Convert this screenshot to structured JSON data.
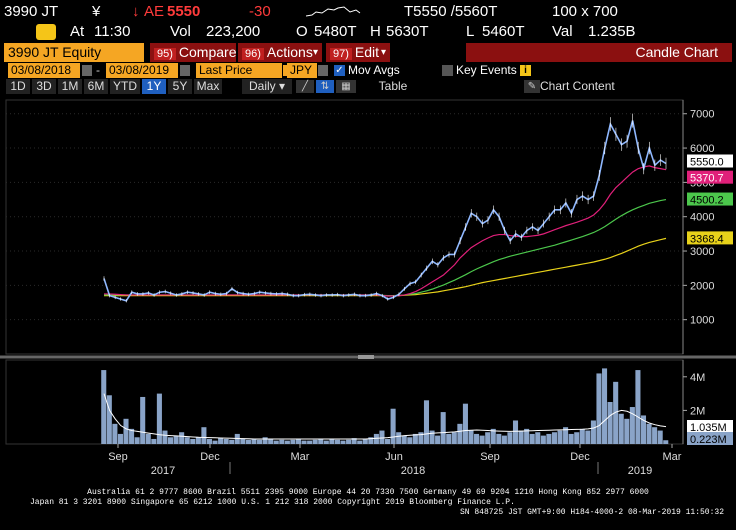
{
  "ticker": {
    "symbol": "3990 JT",
    "currency_symbol": "¥",
    "arrow": "↓",
    "ae_label": "AE",
    "last_price": "5550",
    "change": "-30",
    "time_label": "At",
    "time": "11:30",
    "vol_label": "Vol",
    "volume": "223,200",
    "open_label": "O",
    "open": "5480T",
    "high_label": "H",
    "high": "5630T",
    "low_label": "L",
    "low": "5460T",
    "bid_ask": "T5550 /5560T",
    "size": "100 x 700",
    "val_label": "Val",
    "value": "1.235B"
  },
  "toolbar": {
    "security": "3990 JT Equity",
    "compare": {
      "num": "95)",
      "label": "Compare"
    },
    "actions": {
      "num": "96)",
      "label": "Actions"
    },
    "edit": {
      "num": "97)",
      "label": "Edit"
    },
    "chart_type": "Candle Chart"
  },
  "settings": {
    "start_date": "03/08/2018",
    "end_date": "03/08/2019",
    "price_field": "Last Price",
    "currency": "JPY",
    "mov_avgs_label": "Mov Avgs",
    "key_events_label": "Key Events"
  },
  "ranges": {
    "items": [
      "1D",
      "3D",
      "1M",
      "6M",
      "YTD",
      "1Y",
      "5Y",
      "Max"
    ],
    "selected": "1Y",
    "frequency": "Daily",
    "table_label": "Table",
    "chart_content_label": "Chart Content"
  },
  "colors": {
    "price": "#8fb8ff",
    "ma_fast": "#e0207a",
    "ma_mid": "#4cc74c",
    "ma_slow": "#e8d21a",
    "volume": "#8aa4c8",
    "accent": "#f5a623",
    "button_red": "#8b1010"
  },
  "chart_data": {
    "type": "line",
    "x_tick_labels": [
      "Sep",
      "Dec",
      "Mar",
      "Jun",
      "Sep",
      "Dec",
      "Mar"
    ],
    "year_labels": [
      "2017",
      "2018",
      "2019"
    ],
    "price_axis": {
      "ticks": [
        1000,
        2000,
        3000,
        4000,
        5000,
        6000,
        7000
      ],
      "range": [
        0,
        7400
      ]
    },
    "volume_axis": {
      "ticks": [
        "2M",
        "4M"
      ],
      "range": [
        0,
        5000000
      ]
    },
    "last_labels": {
      "price": "5550.0",
      "ma_fast": "5370.7",
      "ma_mid": "4500.2",
      "ma_slow": "3368.4",
      "vol_ma": "1.035M",
      "vol_last": "0.223M"
    },
    "series": [
      {
        "key": "price",
        "values": [
          2200,
          1700,
          1650,
          1600,
          1550,
          1800,
          1750,
          1750,
          1780,
          1720,
          1800,
          1820,
          1770,
          1720,
          1750,
          1800,
          1780,
          1750,
          1720,
          1800,
          1760,
          1740,
          1760,
          1900,
          1790,
          1760,
          1740,
          1760,
          1800,
          1780,
          1760,
          1750,
          1760,
          1740,
          1700,
          1700,
          1730,
          1740,
          1720,
          1700,
          1720,
          1720,
          1730,
          1700,
          1720,
          1740,
          1700,
          1700,
          1720,
          1760,
          1700,
          1600,
          1650,
          1740,
          1900,
          2050,
          2100,
          2300,
          2500,
          2700,
          2600,
          2800,
          2900,
          2900,
          3300,
          3700,
          4100,
          4000,
          3800,
          3900,
          4200,
          4000,
          3600,
          3300,
          3500,
          3400,
          3600,
          3700,
          3600,
          3800,
          4000,
          4200,
          4200,
          4400,
          4100,
          4500,
          4600,
          4500,
          4600,
          5200,
          6000,
          6700,
          6400,
          6100,
          6200,
          6800,
          6000,
          5400,
          6000,
          5500,
          5650,
          5550
        ]
      },
      {
        "key": "ma_fast",
        "values": [
          1750,
          1750,
          1740,
          1730,
          1720,
          1720,
          1720,
          1720,
          1720,
          1720,
          1720,
          1720,
          1720,
          1720,
          1720,
          1720,
          1720,
          1720,
          1720,
          1720,
          1720,
          1720,
          1720,
          1720,
          1720,
          1720,
          1720,
          1720,
          1720,
          1720,
          1720,
          1720,
          1720,
          1720,
          1720,
          1720,
          1720,
          1720,
          1720,
          1720,
          1720,
          1720,
          1720,
          1720,
          1720,
          1720,
          1720,
          1720,
          1720,
          1720,
          1700,
          1690,
          1690,
          1700,
          1720,
          1760,
          1820,
          1900,
          2000,
          2100,
          2200,
          2300,
          2450,
          2600,
          2800,
          2950,
          3100,
          3200,
          3300,
          3380,
          3450,
          3480,
          3480,
          3450,
          3430,
          3420,
          3420,
          3440,
          3460,
          3500,
          3560,
          3620,
          3680,
          3740,
          3790,
          3840,
          3900,
          3960,
          4050,
          4200,
          4400,
          4650,
          4850,
          5000,
          5150,
          5300,
          5400,
          5450,
          5480,
          5430,
          5400,
          5370
        ]
      },
      {
        "key": "ma_mid",
        "values": [
          1720,
          1720,
          1720,
          1720,
          1720,
          1720,
          1720,
          1720,
          1720,
          1720,
          1720,
          1720,
          1720,
          1720,
          1720,
          1720,
          1720,
          1720,
          1720,
          1720,
          1720,
          1720,
          1720,
          1720,
          1720,
          1720,
          1720,
          1720,
          1720,
          1720,
          1720,
          1720,
          1720,
          1720,
          1720,
          1720,
          1720,
          1720,
          1720,
          1720,
          1720,
          1720,
          1720,
          1720,
          1720,
          1720,
          1720,
          1720,
          1720,
          1720,
          1710,
          1700,
          1700,
          1710,
          1720,
          1740,
          1760,
          1800,
          1840,
          1890,
          1950,
          2010,
          2080,
          2150,
          2230,
          2310,
          2400,
          2480,
          2550,
          2620,
          2690,
          2750,
          2800,
          2850,
          2890,
          2930,
          2970,
          3010,
          3050,
          3090,
          3130,
          3170,
          3220,
          3270,
          3320,
          3370,
          3420,
          3480,
          3540,
          3620,
          3710,
          3820,
          3930,
          4030,
          4120,
          4200,
          4270,
          4330,
          4390,
          4430,
          4470,
          4500
        ]
      },
      {
        "key": "ma_slow",
        "values": [
          1700,
          1700,
          1700,
          1700,
          1700,
          1700,
          1700,
          1700,
          1700,
          1700,
          1700,
          1700,
          1700,
          1700,
          1700,
          1700,
          1700,
          1700,
          1700,
          1700,
          1700,
          1700,
          1700,
          1700,
          1700,
          1700,
          1700,
          1700,
          1700,
          1700,
          1700,
          1700,
          1700,
          1700,
          1700,
          1700,
          1700,
          1700,
          1700,
          1700,
          1700,
          1700,
          1700,
          1700,
          1700,
          1700,
          1700,
          1700,
          1700,
          1700,
          1700,
          1700,
          1700,
          1700,
          1710,
          1720,
          1730,
          1750,
          1770,
          1790,
          1810,
          1840,
          1870,
          1900,
          1930,
          1960,
          2000,
          2040,
          2080,
          2110,
          2140,
          2170,
          2200,
          2230,
          2260,
          2290,
          2320,
          2350,
          2380,
          2410,
          2440,
          2470,
          2500,
          2530,
          2560,
          2590,
          2620,
          2650,
          2680,
          2720,
          2760,
          2810,
          2870,
          2930,
          3000,
          3070,
          3140,
          3200,
          3250,
          3290,
          3330,
          3368
        ]
      },
      {
        "key": "volume",
        "values": [
          4400,
          2900,
          1200,
          600,
          1500,
          900,
          400,
          2800,
          600,
          300,
          3000,
          800,
          400,
          500,
          700,
          400,
          300,
          400,
          1000,
          300,
          200,
          350,
          300,
          250,
          600,
          300,
          250,
          300,
          250,
          400,
          300,
          200,
          250,
          200,
          250,
          300,
          200,
          200,
          250,
          300,
          200,
          300,
          250,
          200,
          250,
          350,
          200,
          300,
          400,
          600,
          800,
          300,
          2100,
          700,
          500,
          400,
          600,
          700,
          2600,
          800,
          500,
          1900,
          600,
          700,
          1200,
          2400,
          800,
          600,
          500,
          700,
          900,
          600,
          500,
          700,
          1400,
          800,
          900,
          600,
          700,
          500,
          600,
          700,
          800,
          1000,
          600,
          700,
          900,
          800,
          1400,
          4200,
          4500,
          2500,
          3700,
          1800,
          1500,
          2200,
          4400,
          1700,
          1200,
          1000,
          800,
          223
        ]
      },
      {
        "key": "vol_ma",
        "values": [
          3000,
          2000,
          1500,
          1100,
          900,
          800,
          750,
          700,
          650,
          600,
          550,
          520,
          500,
          480,
          460,
          440,
          420,
          400,
          390,
          380,
          370,
          360,
          350,
          340,
          330,
          320,
          310,
          300,
          300,
          300,
          300,
          300,
          300,
          300,
          300,
          300,
          300,
          300,
          300,
          300,
          300,
          300,
          300,
          300,
          300,
          300,
          300,
          300,
          320,
          340,
          360,
          380,
          420,
          460,
          500,
          520,
          540,
          560,
          600,
          640,
          660,
          680,
          700,
          720,
          760,
          800,
          820,
          830,
          820,
          800,
          780,
          770,
          760,
          750,
          760,
          770,
          780,
          790,
          800,
          810,
          820,
          830,
          840,
          850,
          860,
          870,
          880,
          900,
          950,
          1100,
          1400,
          1700,
          1900,
          2000,
          1950,
          1800,
          1600,
          1400,
          1250,
          1150,
          1080,
          1035
        ]
      }
    ]
  },
  "footer": {
    "line1": "Australia 61 2 9777 8600 Brazil 5511 2395 9000 Europe 44 20 7330 7500 Germany 49 69 9204 1210 Hong Kong 852 2977 6000",
    "line2": "Japan 81 3 3201 8900        Singapore 65 6212 1000        U.S. 1 212 318 2000        Copyright 2019 Bloomberg Finance L.P.",
    "line3": "SN 848725 JST  GMT+9:00 H184-4000-2 08-Mar-2019 11:50:32"
  }
}
